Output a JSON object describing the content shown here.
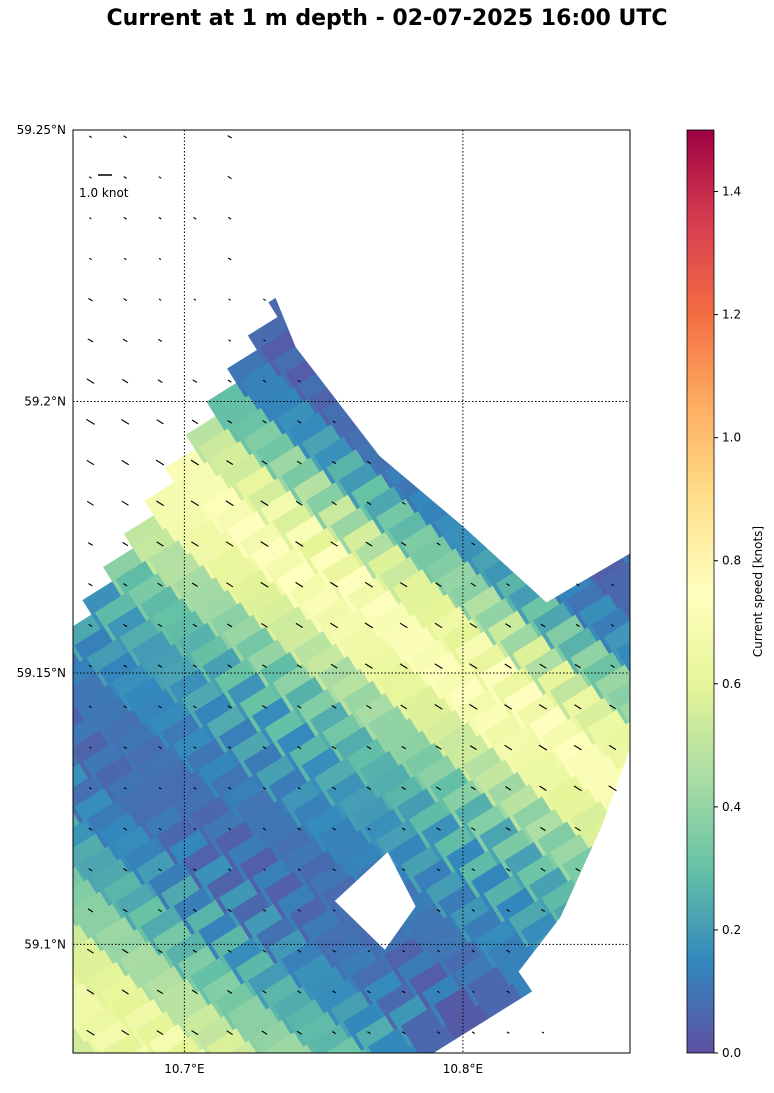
{
  "title": "Current at 1 m depth - 02-07-2025 16:00 UTC",
  "chart_data": {
    "type": "heatmap",
    "title": "Current at 1 m depth - 02-07-2025 16:00 UTC",
    "xlim": [
      10.66,
      10.86
    ],
    "ylim": [
      59.08,
      59.25
    ],
    "x_ticks": [
      {
        "value": 10.7,
        "label": "10.7°E"
      },
      {
        "value": 10.8,
        "label": "10.8°E"
      }
    ],
    "y_ticks": [
      {
        "value": 59.25,
        "label": "59.25°N"
      },
      {
        "value": 59.2,
        "label": "59.2°N"
      },
      {
        "value": 59.15,
        "label": "59.15°N"
      },
      {
        "value": 59.1,
        "label": "59.1°N"
      }
    ],
    "grid": "dotted at tick values",
    "reference_arrow": {
      "label": "1.0 knot",
      "value": 1.0
    },
    "colorbar": {
      "label": "Current speed [knots]",
      "colormap": "Spectral_r",
      "range": [
        0.0,
        1.5
      ],
      "ticks": [
        "0.0",
        "0.2",
        "0.4",
        "0.6",
        "0.8",
        "1.0",
        "1.2",
        "1.4"
      ]
    },
    "cell_size_deg": {
      "x": 0.0125,
      "y": 0.0075
    },
    "field": {
      "orientation_deg": 32,
      "band_centers_lat_at_lon_10_66": [
        59.235,
        59.197,
        59.139,
        59.09
      ],
      "band_speeds": [
        0.05,
        0.72,
        0.08,
        0.66
      ],
      "band_width_lat": 0.018,
      "background_speed": 0.22
    },
    "land_masks": [
      {
        "name": "coast-northeast",
        "polygon": [
          [
            10.72,
            59.25
          ],
          [
            10.86,
            59.25
          ],
          [
            10.86,
            59.172
          ],
          [
            10.83,
            59.163
          ],
          [
            10.8,
            59.177
          ],
          [
            10.77,
            59.19
          ],
          [
            10.74,
            59.21
          ],
          [
            10.72,
            59.235
          ]
        ]
      },
      {
        "name": "coast-southeast",
        "polygon": [
          [
            10.86,
            59.136
          ],
          [
            10.86,
            59.08
          ],
          [
            10.84,
            59.08
          ],
          [
            10.82,
            59.095
          ],
          [
            10.835,
            59.105
          ],
          [
            10.85,
            59.122
          ]
        ]
      },
      {
        "name": "island-north-1",
        "polygon": [
          [
            10.69,
            59.25
          ],
          [
            10.71,
            59.25
          ],
          [
            10.705,
            59.238
          ],
          [
            10.695,
            59.24
          ]
        ]
      },
      {
        "name": "island-north-2",
        "polygon": [
          [
            10.695,
            59.23
          ],
          [
            10.71,
            59.236
          ],
          [
            10.713,
            59.228
          ],
          [
            10.702,
            59.222
          ]
        ]
      },
      {
        "name": "island-north-3",
        "polygon": [
          [
            10.693,
            59.22
          ],
          [
            10.703,
            59.22
          ],
          [
            10.707,
            59.212
          ],
          [
            10.697,
            59.208
          ]
        ]
      },
      {
        "name": "island-south",
        "polygon": [
          [
            10.754,
            59.108
          ],
          [
            10.773,
            59.117
          ],
          [
            10.783,
            59.107
          ],
          [
            10.772,
            59.099
          ]
        ]
      }
    ]
  }
}
